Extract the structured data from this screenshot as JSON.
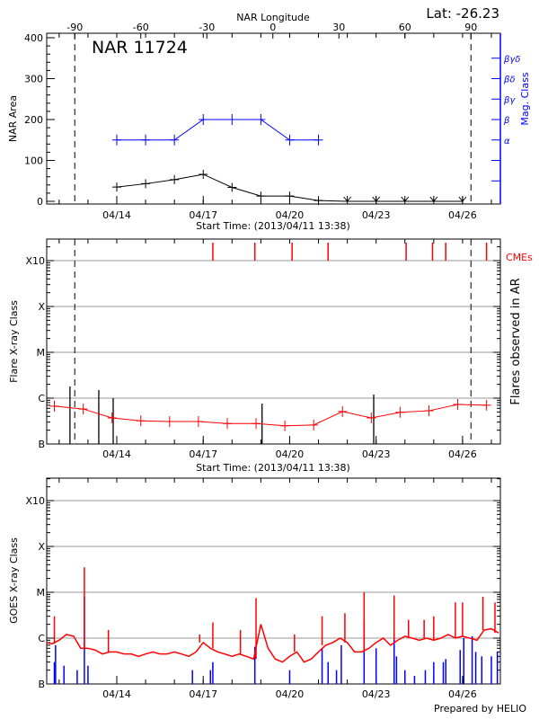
{
  "colors": {
    "axis": "#000000",
    "magclass": "#0000ff",
    "flares": "#ff0000",
    "cme": "#ff0000",
    "grid": "#9a9a9a",
    "goes_long": "#ff0000",
    "goes_short": "#0000ff"
  },
  "footer": "Prepared by HELIO",
  "chart_data": [
    {
      "type": "line",
      "title": "NAR 11724",
      "lat_label": "Lat: -26.23",
      "xlabel": "Start Time: (2013/04/11 13:38)",
      "x_top_label": "NAR Longitude",
      "ylabel": "NAR Area",
      "y2label": "Mag. Class",
      "xlim": [
        "04/11 13:38",
        "04/27 07:30"
      ],
      "ylim": [
        0,
        400
      ],
      "yticks": [
        0,
        100,
        200,
        300,
        400
      ],
      "xtick_labels": [
        "04/14",
        "04/17",
        "04/20",
        "04/23",
        "04/26"
      ],
      "top_axis": {
        "ticks": [
          -90,
          -60,
          -30,
          0,
          30,
          60,
          90
        ],
        "limb_times": [
          "04/12 13:00",
          "04/26 07:00"
        ]
      },
      "limb_lines": [
        "04/12 13:00",
        "04/26 07:00"
      ],
      "mag_classes": [
        {
          "label": "α",
          "level": 150
        },
        {
          "label": "β",
          "level": 200
        },
        {
          "label": "βγ",
          "level": 250
        },
        {
          "label": "βδ",
          "level": 300
        },
        {
          "label": "βγδ",
          "level": 350
        }
      ],
      "series": [
        {
          "name": "NAR Area",
          "color": "#000000",
          "x": [
            "04/14 00:00",
            "04/15 00:00",
            "04/16 00:00",
            "04/17 00:00",
            "04/18 00:00",
            "04/19 00:00",
            "04/20 00:00",
            "04/21 00:00",
            "04/22 00:00",
            "04/23 00:00",
            "04/24 00:00",
            "04/25 00:00",
            "04/26 00:00"
          ],
          "y": [
            35,
            43,
            53,
            66,
            34,
            13,
            13,
            2,
            0,
            0,
            0,
            0,
            0
          ]
        },
        {
          "name": "Mag. Class",
          "color": "#0000ff",
          "x": [
            "04/14 00:00",
            "04/15 00:00",
            "04/16 00:00",
            "04/17 00:00",
            "04/18 00:00",
            "04/19 00:00",
            "04/20 00:00",
            "04/21 00:00"
          ],
          "y": [
            "α",
            "α",
            "α",
            "β",
            "β",
            "β",
            "α",
            "α"
          ]
        }
      ]
    },
    {
      "type": "line",
      "xlabel": "Start Time: (2013/04/11 13:38)",
      "ylabel": "Flare X-ray Class",
      "y2label": "Flares observed in AR",
      "cme_label": "CMEs",
      "yscale": "log",
      "ytick_labels": [
        "B",
        "C",
        "M",
        "X",
        "X10"
      ],
      "grid": true,
      "xtick_labels": [
        "04/14",
        "04/17",
        "04/20",
        "04/23",
        "04/26"
      ],
      "limb_lines": [
        "04/12 13:00",
        "04/26 07:00"
      ],
      "background": {
        "x": [
          "04/11 20:00",
          "04/12 20:00",
          "04/13 20:00",
          "04/14 20:00",
          "04/15 20:00",
          "04/16 20:00",
          "04/17 20:00",
          "04/18 20:00",
          "04/19 20:00",
          "04/20 20:00",
          "04/21 20:00",
          "04/22 20:00",
          "04/23 20:00",
          "04/24 20:00",
          "04/25 20:00",
          "04/26 20:00"
        ],
        "y": [
          "B6.7",
          "B5.8",
          "B3.7",
          "B3.2",
          "B3.1",
          "B3.1",
          "B2.8",
          "B2.8",
          "B2.5",
          "B2.6",
          "B5.1",
          "B3.7",
          "B4.9",
          "B5.3",
          "B7.3",
          "B7.0"
        ]
      },
      "flares": [
        {
          "t": "04/12 09:00",
          "class": "C1.8"
        },
        {
          "t": "04/13 09:00",
          "class": "C1.5"
        },
        {
          "t": "04/13 21:00",
          "class": "C1.0"
        },
        {
          "t": "04/19 01:00",
          "class": "B7.6"
        },
        {
          "t": "04/22 22:00",
          "class": "C1.2"
        }
      ],
      "cmes": [
        "04/17 08:00",
        "04/18 19:00",
        "04/20 02:00",
        "04/21 08:00",
        "04/24 01:00",
        "04/24 23:00",
        "04/25 10:00",
        "04/26 20:00"
      ]
    },
    {
      "type": "line",
      "ylabel": "GOES X-ray Class",
      "yscale": "log",
      "ytick_labels": [
        "B",
        "C",
        "M",
        "X",
        "X10"
      ],
      "grid": true,
      "xtick_labels": [
        "04/14",
        "04/17",
        "04/20",
        "04/23",
        "04/26"
      ],
      "long_channel": {
        "t0": "04/11 12:00",
        "step_hours": 6,
        "y": [
          "B8",
          "B7.5",
          "B9",
          "C1.2",
          "C1.1",
          "B6",
          "B6",
          "B5.5",
          "B4.5",
          "B5",
          "B5",
          "B4.5",
          "B4.5",
          "B4",
          "B4.5",
          "B5",
          "B4.5",
          "B4.5",
          "B5",
          "B4.5",
          "B4",
          "B5",
          "B8",
          "B6",
          "B5",
          "B4.5",
          "B4",
          "B4.5",
          "B4",
          "B3.5",
          "C2",
          "B6",
          "B3.5",
          "B3",
          "B4",
          "B5",
          "B3",
          "B3.5",
          "B5",
          "B7",
          "B8",
          "C1",
          "B8",
          "B5",
          "B5",
          "B6",
          "B8",
          "C1",
          "B7",
          "B9",
          "C1.1",
          "C1",
          "B9",
          "C1",
          "B9",
          "C1",
          "C1.2",
          "C1",
          "C1.1",
          "C1",
          "B9",
          "C1.5",
          "C1.6",
          "C1.3"
        ],
        "spikes": [
          {
            "t": "04/11 20:00",
            "class": "C3"
          },
          {
            "t": "04/12 21:00",
            "class": "M3.5"
          },
          {
            "t": "04/13 17:00",
            "class": "C1.5"
          },
          {
            "t": "04/16 21:00",
            "class": "C1.2"
          },
          {
            "t": "04/17 08:00",
            "class": "C2.2"
          },
          {
            "t": "04/18 07:00",
            "class": "C1.5"
          },
          {
            "t": "04/18 20:00",
            "class": "C7.5"
          },
          {
            "t": "04/20 04:00",
            "class": "C1.2"
          },
          {
            "t": "04/21 03:00",
            "class": "C3"
          },
          {
            "t": "04/21 22:00",
            "class": "C3.5"
          },
          {
            "t": "04/22 14:00",
            "class": "M1"
          },
          {
            "t": "04/23 15:00",
            "class": "C8.5"
          },
          {
            "t": "04/24 03:00",
            "class": "C2.5"
          },
          {
            "t": "04/24 16:00",
            "class": "C2.5"
          },
          {
            "t": "04/25 00:00",
            "class": "C3"
          },
          {
            "t": "04/25 18:00",
            "class": "C6"
          },
          {
            "t": "04/26 00:00",
            "class": "C6"
          },
          {
            "t": "04/26 17:00",
            "class": "C8"
          },
          {
            "t": "04/27 03:00",
            "class": "C6"
          }
        ]
      },
      "short_channel": [
        {
          "t": "04/11 20:00",
          "class": "B3"
        },
        {
          "t": "04/11 21:00",
          "class": "B7"
        },
        {
          "t": "04/12 04:00",
          "class": "B2.5"
        },
        {
          "t": "04/12 15:00",
          "class": "B2"
        },
        {
          "t": "04/12 21:00",
          "class": "C8"
        },
        {
          "t": "04/13 00:00",
          "class": "B2.5"
        },
        {
          "t": "04/16 15:00",
          "class": "B2"
        },
        {
          "t": "04/17 06:00",
          "class": "B2"
        },
        {
          "t": "04/17 08:00",
          "class": "B3"
        },
        {
          "t": "04/18 19:00",
          "class": "B6.5"
        },
        {
          "t": "04/20 00:00",
          "class": "B2"
        },
        {
          "t": "04/21 03:00",
          "class": "B6"
        },
        {
          "t": "04/21 08:00",
          "class": "B3"
        },
        {
          "t": "04/21 15:00",
          "class": "B2"
        },
        {
          "t": "04/21 19:00",
          "class": "B7"
        },
        {
          "t": "04/22 14:00",
          "class": "C2.5"
        },
        {
          "t": "04/23 00:00",
          "class": "B6"
        },
        {
          "t": "04/23 15:00",
          "class": "C1.2"
        },
        {
          "t": "04/23 17:00",
          "class": "B4"
        },
        {
          "t": "04/24 00:00",
          "class": "B2"
        },
        {
          "t": "04/24 08:00",
          "class": "B1.5"
        },
        {
          "t": "04/24 17:00",
          "class": "B2"
        },
        {
          "t": "04/25 00:00",
          "class": "B3"
        },
        {
          "t": "04/25 08:00",
          "class": "B3"
        },
        {
          "t": "04/25 10:00",
          "class": "B3.5"
        },
        {
          "t": "04/25 22:00",
          "class": "B5.5"
        },
        {
          "t": "04/26 01:00",
          "class": "C1"
        },
        {
          "t": "04/26 08:00",
          "class": "C1.1"
        },
        {
          "t": "04/26 11:00",
          "class": "B5"
        },
        {
          "t": "04/26 16:00",
          "class": "B4"
        },
        {
          "t": "04/27 00:00",
          "class": "B4"
        },
        {
          "t": "04/27 05:00",
          "class": "B5"
        }
      ]
    }
  ]
}
